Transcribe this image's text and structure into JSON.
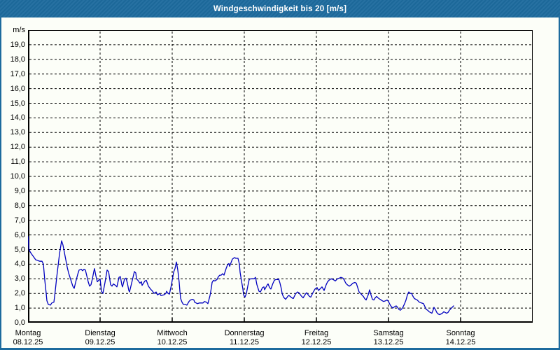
{
  "window": {
    "title": "Windgeschwindigkeit bis 20 [m/s]"
  },
  "colors": {
    "titlebar_bg": "#1d6b9e",
    "title_text": "#ffffff",
    "content_bg": "#fcfef8",
    "grid": "#000000",
    "label_text": "#000000",
    "line": "#0000bf"
  },
  "chart_data": {
    "type": "line",
    "title": "Windgeschwindigkeit bis 20 [m/s]",
    "y_unit_label": "m/s",
    "ylim": [
      0,
      20
    ],
    "xlim_days": [
      0,
      7
    ],
    "grid": "dashed",
    "legend_position": "none",
    "y_ticks": [
      "0,0",
      "1,0",
      "2,0",
      "3,0",
      "4,0",
      "5,0",
      "6,0",
      "7,0",
      "8,0",
      "9,0",
      "10,0",
      "11,0",
      "12,0",
      "13,0",
      "14,0",
      "15,0",
      "16,0",
      "17,0",
      "18,0",
      "19,0"
    ],
    "x_ticks": [
      {
        "day": "Montag",
        "date": "08.12.25"
      },
      {
        "day": "Dienstag",
        "date": "09.12.25"
      },
      {
        "day": "Mittwoch",
        "date": "10.12.25"
      },
      {
        "day": "Donnerstag",
        "date": "11.12.25"
      },
      {
        "day": "Freitag",
        "date": "12.12.25"
      },
      {
        "day": "Samstag",
        "date": "13.12.25"
      },
      {
        "day": "Sonntag",
        "date": "14.12.25"
      }
    ],
    "series": [
      {
        "name": "Windgeschwindigkeit",
        "x_unit": "days",
        "points": [
          [
            0,
            5.9
          ],
          [
            0.015,
            5.0
          ],
          [
            0.029,
            4.85
          ],
          [
            0.049,
            4.7
          ],
          [
            0.078,
            4.5
          ],
          [
            0.107,
            4.3
          ],
          [
            0.136,
            4.25
          ],
          [
            0.165,
            4.2
          ],
          [
            0.194,
            4.2
          ],
          [
            0.214,
            4.0
          ],
          [
            0.233,
            2.9
          ],
          [
            0.252,
            2.0
          ],
          [
            0.262,
            1.5
          ],
          [
            0.282,
            1.25
          ],
          [
            0.311,
            1.2
          ],
          [
            0.33,
            1.35
          ],
          [
            0.359,
            1.4
          ],
          [
            0.379,
            2.2
          ],
          [
            0.398,
            3.1
          ],
          [
            0.417,
            3.9
          ],
          [
            0.437,
            4.7
          ],
          [
            0.456,
            5.3
          ],
          [
            0.466,
            5.6
          ],
          [
            0.485,
            5.3
          ],
          [
            0.505,
            4.8
          ],
          [
            0.524,
            4.3
          ],
          [
            0.544,
            3.8
          ],
          [
            0.563,
            3.4
          ],
          [
            0.583,
            3.1
          ],
          [
            0.602,
            2.8
          ],
          [
            0.621,
            2.5
          ],
          [
            0.641,
            2.35
          ],
          [
            0.66,
            2.75
          ],
          [
            0.689,
            3.3
          ],
          [
            0.709,
            3.6
          ],
          [
            0.738,
            3.65
          ],
          [
            0.757,
            3.55
          ],
          [
            0.777,
            3.65
          ],
          [
            0.796,
            3.6
          ],
          [
            0.816,
            3.2
          ],
          [
            0.835,
            2.8
          ],
          [
            0.854,
            2.5
          ],
          [
            0.874,
            2.6
          ],
          [
            0.893,
            3.0
          ],
          [
            0.913,
            3.5
          ],
          [
            0.922,
            3.7
          ],
          [
            0.942,
            3.2
          ],
          [
            0.961,
            2.8
          ],
          [
            0.981,
            2.9
          ],
          [
            1.0,
            3.0
          ],
          [
            1.019,
            2.15
          ],
          [
            1.039,
            2.0
          ],
          [
            1.068,
            2.75
          ],
          [
            1.097,
            3.6
          ],
          [
            1.117,
            3.5
          ],
          [
            1.146,
            2.6
          ],
          [
            1.165,
            2.5
          ],
          [
            1.184,
            2.65
          ],
          [
            1.214,
            2.55
          ],
          [
            1.233,
            2.45
          ],
          [
            1.262,
            3.1
          ],
          [
            1.282,
            3.15
          ],
          [
            1.301,
            2.6
          ],
          [
            1.311,
            2.45
          ],
          [
            1.34,
            3.0
          ],
          [
            1.359,
            3.05
          ],
          [
            1.379,
            2.7
          ],
          [
            1.398,
            2.2
          ],
          [
            1.408,
            2.1
          ],
          [
            1.437,
            2.7
          ],
          [
            1.476,
            3.5
          ],
          [
            1.495,
            3.4
          ],
          [
            1.505,
            3.0
          ],
          [
            1.524,
            2.9
          ],
          [
            1.553,
            2.7
          ],
          [
            1.573,
            2.8
          ],
          [
            1.583,
            2.55
          ],
          [
            1.621,
            2.85
          ],
          [
            1.641,
            2.9
          ],
          [
            1.67,
            2.5
          ],
          [
            1.699,
            2.3
          ],
          [
            1.728,
            2.15
          ],
          [
            1.748,
            2.0
          ],
          [
            1.777,
            2.1
          ],
          [
            1.796,
            1.9
          ],
          [
            1.825,
            2.0
          ],
          [
            1.845,
            1.85
          ],
          [
            1.883,
            1.9
          ],
          [
            1.913,
            2.0
          ],
          [
            1.922,
            2.15
          ],
          [
            1.942,
            2.0
          ],
          [
            1.961,
            1.95
          ],
          [
            1.99,
            2.6
          ],
          [
            2.0,
            2.9
          ],
          [
            2.01,
            3.15
          ],
          [
            2.019,
            3.45
          ],
          [
            2.039,
            3.7
          ],
          [
            2.058,
            4.15
          ],
          [
            2.078,
            3.6
          ],
          [
            2.097,
            2.75
          ],
          [
            2.107,
            2.15
          ],
          [
            2.117,
            1.65
          ],
          [
            2.136,
            1.4
          ],
          [
            2.155,
            1.25
          ],
          [
            2.184,
            1.25
          ],
          [
            2.204,
            1.2
          ],
          [
            2.233,
            1.45
          ],
          [
            2.252,
            1.55
          ],
          [
            2.282,
            1.6
          ],
          [
            2.301,
            1.55
          ],
          [
            2.311,
            1.4
          ],
          [
            2.35,
            1.3
          ],
          [
            2.379,
            1.35
          ],
          [
            2.408,
            1.35
          ],
          [
            2.427,
            1.35
          ],
          [
            2.447,
            1.45
          ],
          [
            2.476,
            1.4
          ],
          [
            2.495,
            1.3
          ],
          [
            2.524,
            1.85
          ],
          [
            2.544,
            2.4
          ],
          [
            2.553,
            2.75
          ],
          [
            2.573,
            2.9
          ],
          [
            2.592,
            2.85
          ],
          [
            2.621,
            2.95
          ],
          [
            2.641,
            3.15
          ],
          [
            2.66,
            3.25
          ],
          [
            2.68,
            3.25
          ],
          [
            2.699,
            3.35
          ],
          [
            2.718,
            3.25
          ],
          [
            2.748,
            3.7
          ],
          [
            2.767,
            3.95
          ],
          [
            2.786,
            4.05
          ],
          [
            2.796,
            3.85
          ],
          [
            2.816,
            4.1
          ],
          [
            2.835,
            4.35
          ],
          [
            2.864,
            4.45
          ],
          [
            2.883,
            4.4
          ],
          [
            2.913,
            4.4
          ],
          [
            2.932,
            4.0
          ],
          [
            2.942,
            3.45
          ],
          [
            2.961,
            2.85
          ],
          [
            2.981,
            2.3
          ],
          [
            2.99,
            1.9
          ],
          [
            3.01,
            1.75
          ],
          [
            3.029,
            2.0
          ],
          [
            3.049,
            2.5
          ],
          [
            3.068,
            2.95
          ],
          [
            3.087,
            3.0
          ],
          [
            3.117,
            3.0
          ],
          [
            3.136,
            3.0
          ],
          [
            3.155,
            3.1
          ],
          [
            3.175,
            2.6
          ],
          [
            3.204,
            2.15
          ],
          [
            3.223,
            2.1
          ],
          [
            3.252,
            2.4
          ],
          [
            3.272,
            2.45
          ],
          [
            3.282,
            2.25
          ],
          [
            3.32,
            2.6
          ],
          [
            3.33,
            2.65
          ],
          [
            3.35,
            2.4
          ],
          [
            3.369,
            2.3
          ],
          [
            3.398,
            2.7
          ],
          [
            3.417,
            2.9
          ],
          [
            3.437,
            2.95
          ],
          [
            3.466,
            2.95
          ],
          [
            3.476,
            3.0
          ],
          [
            3.495,
            2.7
          ],
          [
            3.515,
            2.3
          ],
          [
            3.524,
            2.0
          ],
          [
            3.544,
            1.75
          ],
          [
            3.563,
            1.65
          ],
          [
            3.573,
            1.6
          ],
          [
            3.612,
            1.85
          ],
          [
            3.621,
            1.85
          ],
          [
            3.66,
            1.7
          ],
          [
            3.68,
            1.65
          ],
          [
            3.709,
            1.95
          ],
          [
            3.738,
            2.1
          ],
          [
            3.757,
            2.05
          ],
          [
            3.786,
            1.85
          ],
          [
            3.806,
            1.75
          ],
          [
            3.816,
            1.7
          ],
          [
            3.854,
            2.0
          ],
          [
            3.864,
            2.05
          ],
          [
            3.903,
            1.8
          ],
          [
            3.922,
            1.75
          ],
          [
            3.951,
            2.05
          ],
          [
            3.981,
            2.3
          ],
          [
            4.01,
            2.4
          ],
          [
            4.029,
            2.2
          ],
          [
            4.058,
            2.35
          ],
          [
            4.078,
            2.45
          ],
          [
            4.107,
            2.2
          ],
          [
            4.136,
            2.6
          ],
          [
            4.155,
            2.8
          ],
          [
            4.175,
            2.9
          ],
          [
            4.204,
            3.0
          ],
          [
            4.233,
            2.95
          ],
          [
            4.262,
            2.85
          ],
          [
            4.291,
            3.0
          ],
          [
            4.32,
            3.05
          ],
          [
            4.34,
            3.1
          ],
          [
            4.369,
            3.05
          ],
          [
            4.388,
            2.9
          ],
          [
            4.408,
            2.7
          ],
          [
            4.427,
            2.6
          ],
          [
            4.456,
            2.5
          ],
          [
            4.485,
            2.6
          ],
          [
            4.505,
            2.7
          ],
          [
            4.534,
            2.75
          ],
          [
            4.553,
            2.7
          ],
          [
            4.573,
            2.4
          ],
          [
            4.592,
            2.1
          ],
          [
            4.621,
            1.95
          ],
          [
            4.65,
            1.8
          ],
          [
            4.67,
            1.65
          ],
          [
            4.689,
            1.55
          ],
          [
            4.718,
            1.9
          ],
          [
            4.738,
            2.25
          ],
          [
            4.757,
            1.9
          ],
          [
            4.777,
            1.6
          ],
          [
            4.796,
            1.55
          ],
          [
            4.816,
            1.7
          ],
          [
            4.835,
            1.8
          ],
          [
            4.854,
            1.7
          ],
          [
            4.883,
            1.6
          ],
          [
            4.913,
            1.5
          ],
          [
            4.932,
            1.45
          ],
          [
            4.961,
            1.5
          ],
          [
            4.981,
            1.55
          ],
          [
            5.0,
            1.45
          ],
          [
            5.019,
            1.25
          ],
          [
            5.039,
            1.1
          ],
          [
            5.058,
            1.0
          ],
          [
            5.087,
            1.1
          ],
          [
            5.107,
            1.15
          ],
          [
            5.126,
            1.05
          ],
          [
            5.146,
            0.9
          ],
          [
            5.165,
            0.85
          ],
          [
            5.194,
            1.0
          ],
          [
            5.223,
            1.3
          ],
          [
            5.243,
            1.55
          ],
          [
            5.262,
            1.9
          ],
          [
            5.282,
            2.1
          ],
          [
            5.301,
            2.0
          ],
          [
            5.32,
            2.0
          ],
          [
            5.34,
            1.8
          ],
          [
            5.359,
            1.65
          ],
          [
            5.379,
            1.6
          ],
          [
            5.398,
            1.55
          ],
          [
            5.427,
            1.4
          ],
          [
            5.456,
            1.35
          ],
          [
            5.485,
            1.3
          ],
          [
            5.505,
            1.1
          ],
          [
            5.524,
            0.9
          ],
          [
            5.544,
            0.85
          ],
          [
            5.563,
            0.75
          ],
          [
            5.583,
            0.7
          ],
          [
            5.602,
            0.65
          ],
          [
            5.621,
            0.9
          ],
          [
            5.631,
            1.05
          ],
          [
            5.65,
            0.9
          ],
          [
            5.67,
            0.7
          ],
          [
            5.689,
            0.6
          ],
          [
            5.709,
            0.55
          ],
          [
            5.728,
            0.6
          ],
          [
            5.748,
            0.65
          ],
          [
            5.767,
            0.75
          ],
          [
            5.786,
            0.7
          ],
          [
            5.806,
            0.65
          ],
          [
            5.825,
            0.7
          ],
          [
            5.845,
            0.85
          ],
          [
            5.874,
            1.0
          ],
          [
            5.903,
            1.15
          ]
        ]
      }
    ]
  }
}
